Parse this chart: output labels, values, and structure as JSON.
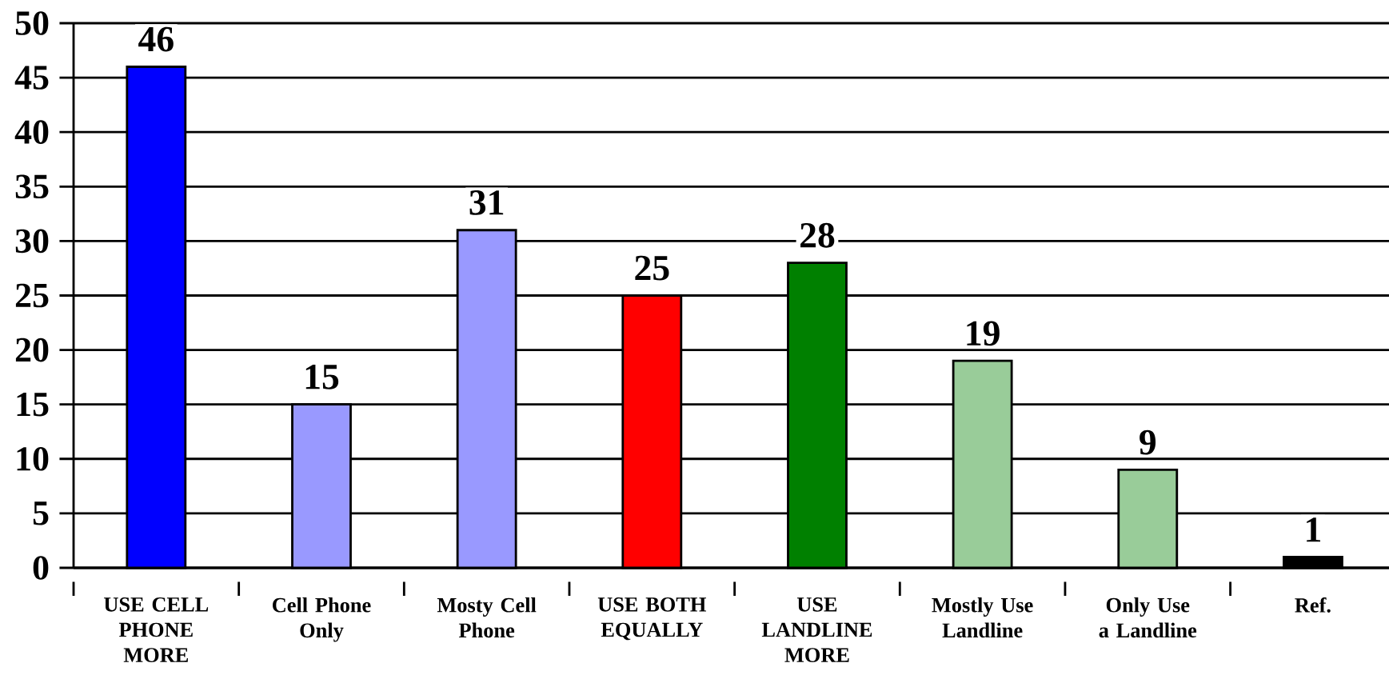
{
  "chart_data": {
    "type": "bar",
    "categories": [
      "USE CELL PHONE MORE",
      "Cell Phone Only",
      "Mosty Cell Phone",
      "USE BOTH EQUALLY",
      "USE LANDLINE MORE",
      "Mostly Use Landline",
      "Only Use a Landline",
      "Ref."
    ],
    "values": [
      46,
      15,
      31,
      25,
      28,
      19,
      9,
      1
    ],
    "colors": [
      "#0000ff",
      "#9999ff",
      "#9999ff",
      "#ff0000",
      "#008000",
      "#99cc99",
      "#99cc99",
      "#000000"
    ],
    "ylim": [
      0,
      50
    ],
    "yticks": [
      0,
      5,
      10,
      15,
      20,
      25,
      30,
      35,
      40,
      45,
      50
    ],
    "grid": "y",
    "data_labels": true
  }
}
